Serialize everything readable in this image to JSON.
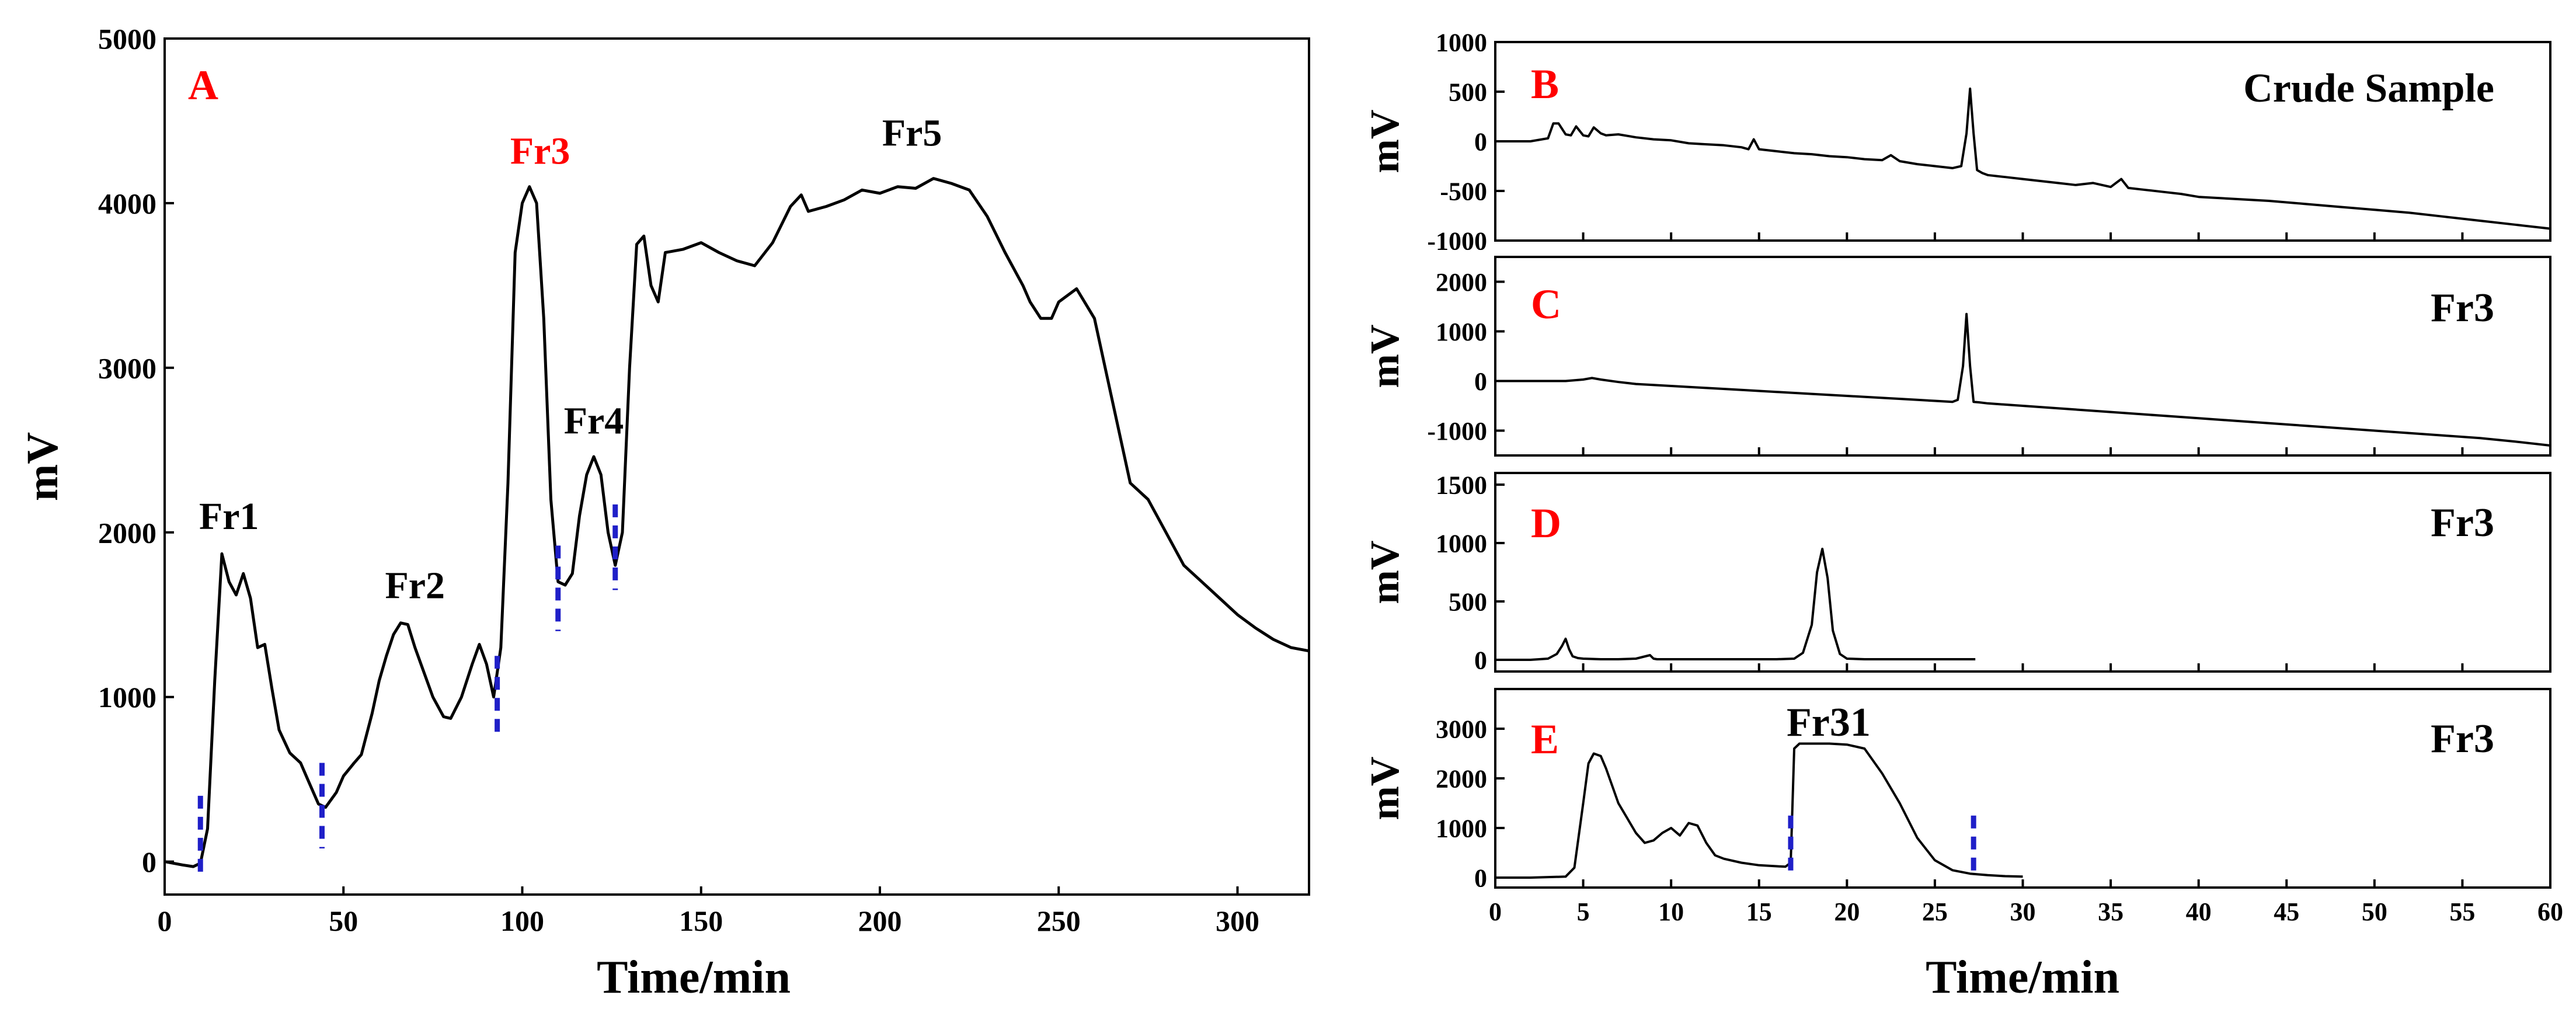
{
  "colors": {
    "label": "#ff0000",
    "trace": "#000000",
    "marker": "#1f1fc8"
  },
  "chart_data": [
    {
      "id": "A",
      "type": "line",
      "panel_label": "A",
      "xlabel": "Time/min",
      "ylabel": "mV",
      "xlim": [
        0,
        320
      ],
      "ylim": [
        -200,
        5000
      ],
      "xticks": [
        0,
        50,
        100,
        150,
        200,
        250,
        300
      ],
      "yticks": [
        0,
        1000,
        2000,
        3000,
        4000,
        5000
      ],
      "x": [
        0,
        5,
        8,
        10,
        12,
        14,
        16,
        18,
        20,
        22,
        24,
        26,
        28,
        30,
        32,
        35,
        38,
        40,
        43,
        45,
        48,
        50,
        53,
        55,
        58,
        60,
        62,
        64,
        66,
        68,
        70,
        72,
        75,
        78,
        80,
        83,
        86,
        88,
        90,
        92,
        94,
        96,
        98,
        100,
        102,
        104,
        106,
        108,
        110,
        112,
        114,
        116,
        118,
        120,
        122,
        124,
        126,
        128,
        130,
        132,
        134,
        136,
        138,
        140,
        145,
        150,
        155,
        160,
        165,
        170,
        175,
        178,
        180,
        185,
        190,
        195,
        200,
        205,
        210,
        215,
        220,
        225,
        230,
        235,
        240,
        242,
        245,
        248,
        250,
        255,
        260,
        265,
        270,
        275,
        280,
        285,
        290,
        295,
        300,
        305,
        310,
        315,
        320
      ],
      "y": [
        0,
        -20,
        -30,
        -10,
        200,
        1100,
        1870,
        1700,
        1620,
        1750,
        1600,
        1300,
        1320,
        1050,
        800,
        660,
        600,
        500,
        350,
        330,
        420,
        520,
        600,
        650,
        900,
        1100,
        1250,
        1380,
        1450,
        1440,
        1300,
        1180,
        1000,
        880,
        870,
        1000,
        1200,
        1320,
        1200,
        1000,
        1300,
        2300,
        3700,
        4000,
        4100,
        4000,
        3300,
        2200,
        1700,
        1680,
        1750,
        2100,
        2350,
        2460,
        2350,
        2000,
        1800,
        2000,
        3000,
        3750,
        3800,
        3500,
        3400,
        3700,
        3720,
        3760,
        3700,
        3650,
        3620,
        3760,
        3980,
        4050,
        3950,
        3980,
        4020,
        4080,
        4060,
        4100,
        4090,
        4150,
        4120,
        4080,
        3920,
        3700,
        3500,
        3400,
        3300,
        3300,
        3400,
        3480,
        3300,
        2800,
        2300,
        2200,
        2000,
        1800,
        1700,
        1600,
        1500,
        1420,
        1350,
        1300,
        1280
      ],
      "fractions": [
        {
          "name": "Fr1",
          "x": 18,
          "y": 2020,
          "highlight": false
        },
        {
          "name": "Fr2",
          "x": 70,
          "y": 1600,
          "highlight": false
        },
        {
          "name": "Fr3",
          "x": 105,
          "y": 4240,
          "highlight": true
        },
        {
          "name": "Fr4",
          "x": 120,
          "y": 2600,
          "highlight": false
        },
        {
          "name": "Fr5",
          "x": 209,
          "y": 4350,
          "highlight": false
        }
      ],
      "cut_markers": [
        {
          "x": 10,
          "y_from": 400,
          "y_to": -80
        },
        {
          "x": 44,
          "y_from": 600,
          "y_to": 80
        },
        {
          "x": 93,
          "y_from": 1250,
          "y_to": 770
        },
        {
          "x": 110,
          "y_from": 1920,
          "y_to": 1400
        },
        {
          "x": 126,
          "y_from": 2170,
          "y_to": 1650
        }
      ]
    },
    {
      "id": "B",
      "type": "line",
      "panel_label": "B",
      "annotation": "Crude Sample",
      "ylabel": "mV",
      "xlim": [
        0,
        60
      ],
      "ylim": [
        -1000,
        1000
      ],
      "yticks": [
        -1000,
        -500,
        0,
        500,
        1000
      ],
      "x": [
        0,
        1,
        2,
        3,
        3.3,
        3.6,
        4,
        4.3,
        4.6,
        5,
        5.3,
        5.6,
        6,
        6.3,
        7,
        8,
        9,
        10,
        11,
        12,
        13,
        14,
        14.4,
        14.7,
        15,
        16,
        17,
        18,
        19,
        20,
        21,
        22,
        22.5,
        23,
        24,
        25,
        26,
        26.5,
        26.8,
        27,
        27.2,
        27.4,
        27.7,
        28,
        29,
        30,
        31,
        32,
        33,
        34,
        35,
        35.3,
        35.6,
        36,
        37,
        38,
        39,
        40,
        42,
        44,
        46,
        48,
        50,
        52,
        54,
        56,
        58,
        60
      ],
      "y": [
        0,
        0,
        0,
        30,
        180,
        180,
        70,
        60,
        150,
        60,
        50,
        140,
        80,
        60,
        70,
        40,
        20,
        10,
        -20,
        -30,
        -40,
        -60,
        -80,
        20,
        -80,
        -100,
        -120,
        -130,
        -150,
        -160,
        -180,
        -190,
        -140,
        -200,
        -230,
        -250,
        -270,
        -250,
        80,
        530,
        80,
        -290,
        -320,
        -340,
        -360,
        -380,
        -400,
        -420,
        -440,
        -420,
        -460,
        -420,
        -380,
        -470,
        -490,
        -510,
        -530,
        -560,
        -580,
        -600,
        -630,
        -660,
        -690,
        -720,
        -760,
        -800,
        -840,
        -880
      ]
    },
    {
      "id": "C",
      "type": "line",
      "panel_label": "C",
      "annotation": "Fr3",
      "ylabel": "mV",
      "xlim": [
        0,
        60
      ],
      "ylim": [
        -1500,
        2500
      ],
      "yticks": [
        -1000,
        0,
        1000,
        2000
      ],
      "x": [
        0,
        1,
        2,
        3,
        4,
        5,
        5.5,
        6,
        7,
        8,
        10,
        12,
        14,
        16,
        18,
        20,
        22,
        24,
        25,
        26,
        26.3,
        26.6,
        26.8,
        27,
        27.2,
        27.5,
        28,
        30,
        32,
        34,
        36,
        38,
        40,
        42,
        44,
        46,
        48,
        50,
        52,
        54,
        56,
        58,
        60
      ],
      "y": [
        0,
        0,
        0,
        0,
        0,
        30,
        60,
        30,
        -20,
        -60,
        -100,
        -140,
        -180,
        -220,
        -260,
        -300,
        -340,
        -380,
        -400,
        -420,
        -380,
        300,
        1350,
        300,
        -420,
        -430,
        -450,
        -500,
        -550,
        -600,
        -650,
        -700,
        -750,
        -800,
        -850,
        -900,
        -950,
        -1000,
        -1050,
        -1100,
        -1150,
        -1220,
        -1300
      ]
    },
    {
      "id": "D",
      "type": "line",
      "panel_label": "D",
      "annotation": "Fr3",
      "ylabel": "mV",
      "xlim": [
        0,
        60
      ],
      "ylim": [
        -100,
        1600
      ],
      "yticks": [
        0,
        500,
        1000,
        1500
      ],
      "x": [
        0,
        1,
        2,
        3,
        3.5,
        3.8,
        4,
        4.2,
        4.4,
        4.7,
        5,
        6,
        7,
        8,
        8.8,
        9,
        9.2,
        10,
        12,
        14,
        16,
        17,
        17.5,
        18,
        18.3,
        18.6,
        18.9,
        19.2,
        19.6,
        20,
        21,
        22,
        24,
        26,
        27.3
      ],
      "y": [
        0,
        0,
        0,
        10,
        50,
        120,
        180,
        90,
        30,
        15,
        10,
        5,
        5,
        10,
        40,
        10,
        5,
        5,
        5,
        5,
        5,
        10,
        60,
        300,
        750,
        950,
        700,
        250,
        50,
        10,
        5,
        5,
        5,
        5,
        5
      ]
    },
    {
      "id": "E",
      "type": "line",
      "panel_label": "E",
      "annotation": "Fr3",
      "peak_label": "Fr31",
      "ylabel": "mV",
      "xlim": [
        0,
        60
      ],
      "ylim": [
        -200,
        3800
      ],
      "xlabel": "Time/min",
      "xticks": [
        0,
        5,
        10,
        15,
        20,
        25,
        30,
        35,
        40,
        45,
        50,
        55,
        60
      ],
      "yticks": [
        0,
        1000,
        2000,
        3000
      ],
      "x": [
        0,
        2,
        4,
        4.5,
        5,
        5.3,
        5.6,
        6,
        6.3,
        6.7,
        7,
        7.5,
        8,
        8.5,
        9,
        9.5,
        10,
        10.5,
        11,
        11.5,
        12,
        12.5,
        13,
        14,
        15,
        16,
        16.5,
        16.8,
        17,
        17.3,
        18,
        19,
        20,
        21,
        22,
        23,
        24,
        25,
        26,
        27,
        28,
        29,
        30
      ],
      "y": [
        0,
        0,
        20,
        200,
        1500,
        2300,
        2500,
        2450,
        2200,
        1800,
        1500,
        1200,
        900,
        700,
        750,
        900,
        1000,
        850,
        1100,
        1050,
        700,
        450,
        380,
        300,
        250,
        230,
        220,
        300,
        2600,
        2700,
        2700,
        2700,
        2680,
        2600,
        2100,
        1500,
        800,
        350,
        150,
        80,
        50,
        30,
        20
      ],
      "cut_markers": [
        {
          "x": 16.8,
          "y_from": 1250,
          "y_to": 0
        },
        {
          "x": 27.2,
          "y_from": 1250,
          "y_to": 0
        }
      ]
    }
  ]
}
